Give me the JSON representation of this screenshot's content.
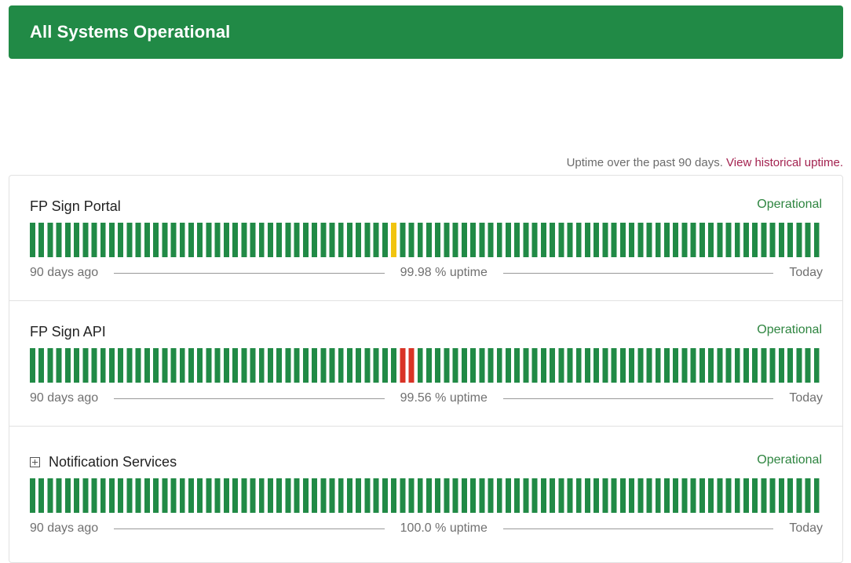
{
  "banner": {
    "title": "All Systems Operational",
    "color": "#218a46"
  },
  "uptime_note": {
    "text": "Uptime over the past 90 days.",
    "link": "View historical uptime."
  },
  "colors": {
    "operational": "#218a46",
    "degraded": "#f1c40f",
    "outage": "#d93326"
  },
  "legend": {
    "start": "90 days ago",
    "end": "Today"
  },
  "components": [
    {
      "name": "FP Sign Portal",
      "status": "Operational",
      "uptime": "99.98 % uptime",
      "expandable": false,
      "days_total": 90,
      "incidents": [
        {
          "day": 41,
          "level": "degraded"
        }
      ]
    },
    {
      "name": "FP Sign API",
      "status": "Operational",
      "uptime": "99.56 % uptime",
      "expandable": false,
      "days_total": 90,
      "incidents": [
        {
          "day": 42,
          "level": "outage"
        },
        {
          "day": 43,
          "level": "outage"
        }
      ]
    },
    {
      "name": "Notification Services",
      "status": "Operational",
      "uptime": "100.0 % uptime",
      "expandable": true,
      "days_total": 90,
      "incidents": []
    }
  ]
}
